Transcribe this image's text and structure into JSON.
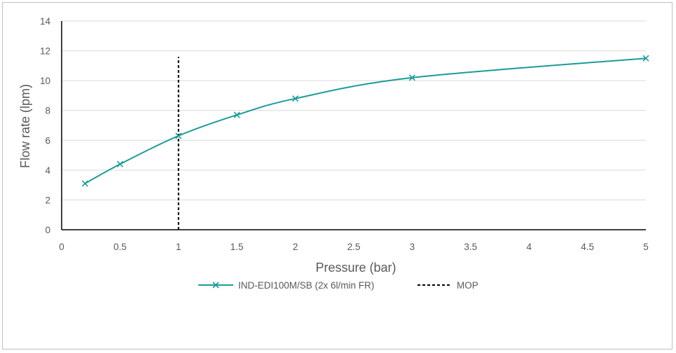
{
  "chart_data": {
    "type": "line",
    "title": "",
    "xlabel": "Pressure (bar)",
    "ylabel": "Flow rate (lpm)",
    "xlim": [
      0,
      5
    ],
    "ylim": [
      0,
      14
    ],
    "x_ticks": [
      "0",
      "0.5",
      "1",
      "1.5",
      "2",
      "2.5",
      "3",
      "3.5",
      "4",
      "4.5",
      "5"
    ],
    "y_ticks": [
      "0",
      "2",
      "4",
      "6",
      "8",
      "10",
      "12",
      "14"
    ],
    "grid": "horizontal",
    "legend_position": "bottom",
    "series": [
      {
        "name": "IND-EDI100M/SB (2x 6l/min FR)",
        "color": "#1a9c97",
        "marker": "x",
        "x": [
          0.2,
          0.5,
          1,
          1.5,
          2,
          3,
          5
        ],
        "y": [
          3.1,
          4.4,
          6.3,
          7.7,
          8.8,
          10.2,
          11.5
        ]
      },
      {
        "name": "MOP",
        "color": "#000000",
        "style": "dashed",
        "x": [
          1,
          1
        ],
        "y": [
          0,
          11.6
        ]
      }
    ]
  }
}
